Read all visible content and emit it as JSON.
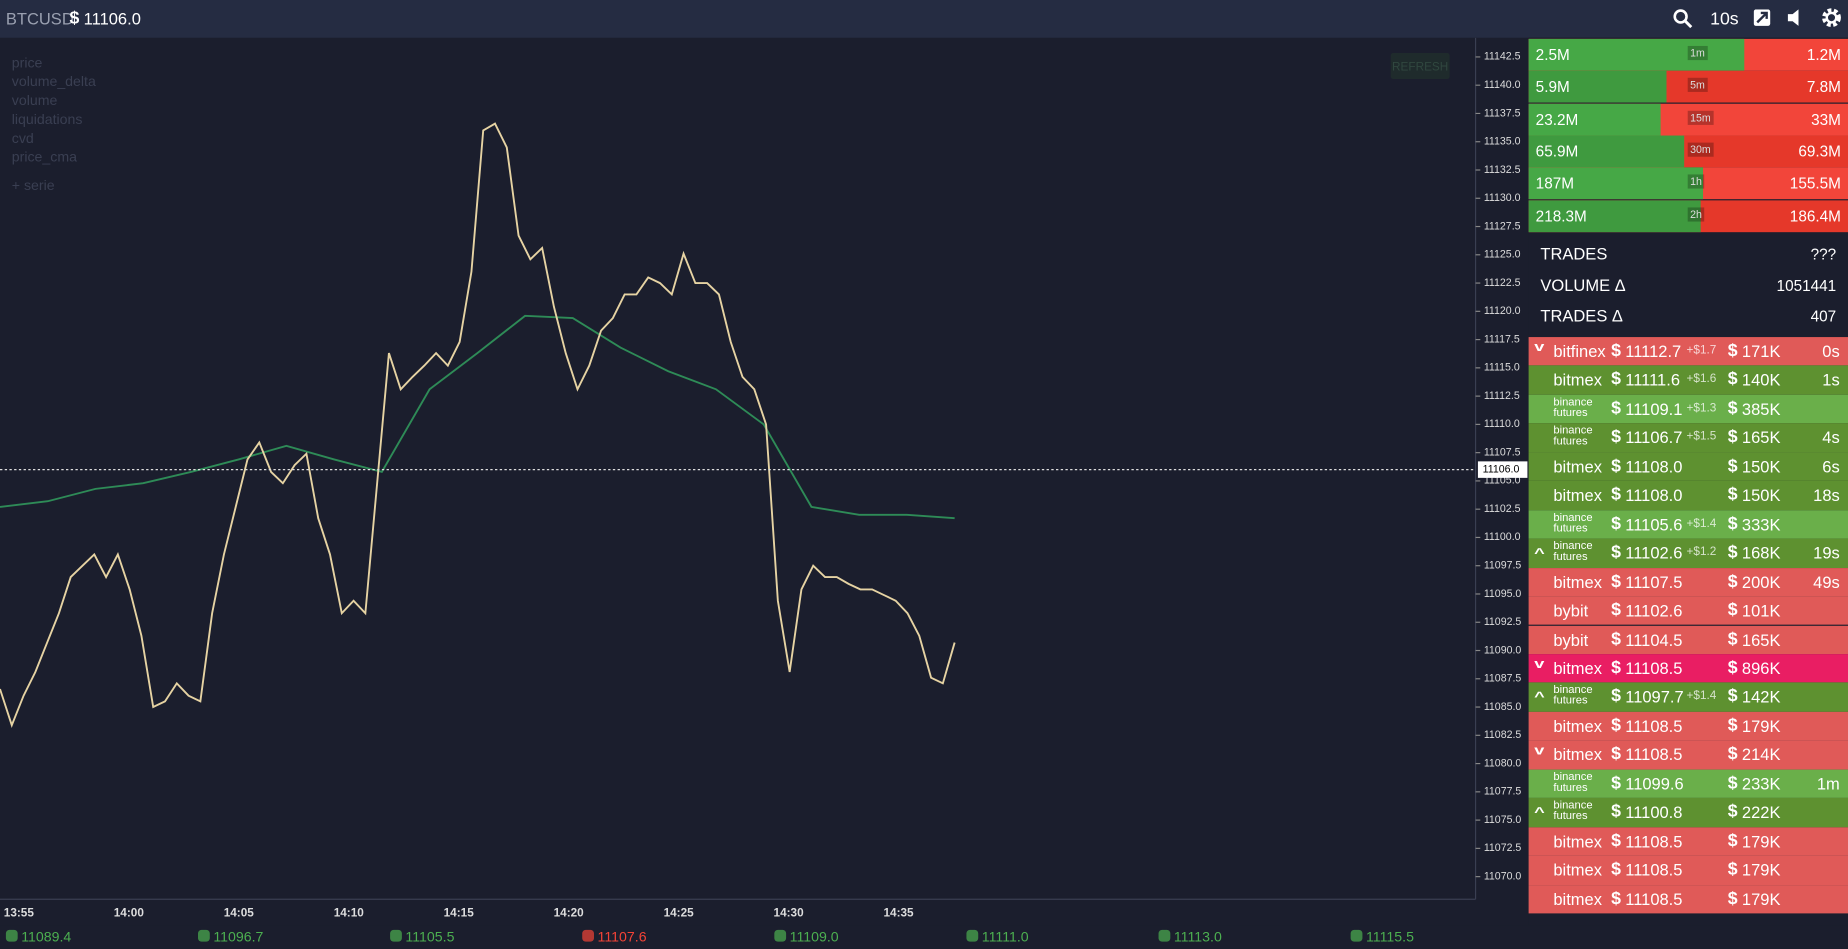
{
  "header": {
    "symbol": "BTCUSD",
    "currency": "$",
    "price": "11106.0",
    "interval": "10s"
  },
  "chart": {
    "series_menu": [
      "price",
      "volume_delta",
      "volume",
      "liquidations",
      "cvd",
      "price_cma"
    ],
    "add_serie": "+ serie",
    "refresh": "REFRESH",
    "ylim": [
      11068.0,
      11144.2
    ],
    "yticks": [
      11142.5,
      {
        "value": 11140,
        "label": "11140.0"
      },
      11137.5,
      {
        "value": 11135,
        "label": "11135.0"
      },
      11132.5,
      {
        "value": 11130,
        "label": "11130.0"
      },
      11127.5,
      {
        "value": 11125,
        "label": "11125.0"
      },
      11122.5,
      {
        "value": 11120,
        "label": "11120.0"
      },
      11117.5,
      {
        "value": 11115,
        "label": "11115.0"
      },
      11112.5,
      {
        "value": 11110,
        "label": "11110.0"
      },
      11107.5,
      {
        "value": 11105,
        "label": "11105.0"
      },
      11102.5,
      {
        "value": 11100,
        "label": "11100.0"
      },
      11097.5,
      {
        "value": 11095,
        "label": "11095.0"
      },
      11092.5,
      {
        "value": 11090,
        "label": "11090.0"
      },
      11087.5,
      {
        "value": 11085,
        "label": "11085.0"
      },
      11082.5,
      {
        "value": 11080,
        "label": "11080.0"
      },
      11077.5,
      {
        "value": 11075,
        "label": "11075.0"
      },
      11072.5,
      {
        "value": 11070,
        "label": "11070.0"
      }
    ],
    "xticks": [
      "13:55",
      "14:00",
      "14:05",
      "14:10",
      "14:15",
      "14:20",
      "14:25",
      "14:30",
      "14:35"
    ],
    "last_price": {
      "value": 11106.0,
      "label": "11106.0"
    },
    "line": {
      "color": "#e6d3a3",
      "values": [
        11086.6,
        11083.4,
        11086.0,
        11088.1,
        11090.7,
        11093.3,
        11096.5,
        11097.5,
        11098.5,
        11096.5,
        11098.5,
        11095.4,
        11091.3,
        11085.0,
        11085.5,
        11087.1,
        11086.0,
        11085.5,
        11093.3,
        11098.5,
        11102.7,
        11106.9,
        11108.4,
        11105.8,
        11104.8,
        11106.4,
        11107.4,
        11101.7,
        11098.5,
        11093.3,
        11094.4,
        11093.3,
        11104.8,
        11116.3,
        11113.1,
        11114.2,
        11115.2,
        11116.3,
        11115.2,
        11117.3,
        11123.5,
        11136.0,
        11136.6,
        11134.5,
        11126.7,
        11124.6,
        11125.6,
        11120.4,
        11116.3,
        11113.1,
        11115.2,
        11118.3,
        11119.4,
        11121.5,
        11121.5,
        11123.0,
        11122.5,
        11121.5,
        11125.1,
        11122.5,
        11122.5,
        11121.5,
        11117.3,
        11114.2,
        11113.1,
        11110.0,
        11094.4,
        11088.1,
        11095.4,
        11097.5,
        11096.5,
        11096.5,
        11095.9,
        11095.4,
        11095.4,
        11094.9,
        11094.4,
        11093.3,
        11091.3,
        11087.6,
        11087.1,
        11090.7
      ]
    },
    "cma": {
      "color": "#2e8b57",
      "values": [
        11102.7,
        11103.2,
        11104.3,
        11104.8,
        11105.8,
        11106.9,
        11108.1,
        11106.9,
        11105.8,
        11113.1,
        11116.3,
        11119.6,
        11119.4,
        11116.8,
        11114.7,
        11113.1,
        11110.0,
        11102.7,
        11102.0,
        11102.0,
        11101.7
      ]
    }
  },
  "volume": {
    "timeframes": [
      "1m",
      "5m",
      "15m",
      "30m",
      "1h",
      "2h"
    ],
    "buy_values": [
      2500000,
      5900000,
      23200000,
      65900000,
      187000000,
      218300000
    ],
    "buy_labels": [
      "2.5M",
      "5.9M",
      "23.2M",
      "65.9M",
      "187M",
      "218.3M"
    ],
    "sell_values": [
      1200000,
      7800000,
      33000000,
      69300000,
      155500000,
      186400000
    ],
    "sell_labels": [
      "1.2M",
      "7.8M",
      "33M",
      "69.3M",
      "155.5M",
      "186.4M"
    ]
  },
  "stats": [
    {
      "label": "TRADES",
      "value": "???"
    },
    {
      "label": "VOLUME Δ",
      "value": 1051441
    },
    {
      "label": "TRADES Δ",
      "value": 407
    }
  ],
  "trades": {
    "currency": "$",
    "rows": [
      {
        "color": "#e05a58",
        "arrow": "down",
        "exchange": "bitfinex",
        "price": "11112.7",
        "delta": "+$1.7",
        "size": "171K",
        "age": "0s"
      },
      {
        "color": "#5e9130",
        "exchange": "bitmex",
        "price": "11111.6",
        "delta": "+$1.6",
        "size": "140K",
        "age": "1s"
      },
      {
        "color": "#6aaf4a",
        "exchange": "binance futures",
        "price": "11109.1",
        "delta": "+$1.3",
        "size": "385K"
      },
      {
        "color": "#5e9130",
        "exchange": "binance futures",
        "price": "11106.7",
        "delta": "+$1.5",
        "size": "165K",
        "age": "4s"
      },
      {
        "color": "#5e9130",
        "exchange": "bitmex",
        "price": "11108.0",
        "size": "150K",
        "age": "6s"
      },
      {
        "color": "#5e9130",
        "exchange": "bitmex",
        "price": "11108.0",
        "size": "150K",
        "age": "18s"
      },
      {
        "color": "#6aaf4a",
        "exchange": "binance futures",
        "price": "11105.6",
        "delta": "+$1.4",
        "size": "333K"
      },
      {
        "color": "#5e9130",
        "arrow": "up",
        "exchange": "binance futures",
        "price": "11102.6",
        "delta": "+$1.2",
        "size": "168K",
        "age": "19s"
      },
      {
        "color": "#e05a58",
        "exchange": "bitmex",
        "price": "11107.5",
        "size": "200K",
        "age": "49s"
      },
      {
        "color": "#e05a58",
        "exchange": "bybit",
        "price": "11102.6",
        "size": "101K"
      },
      {
        "color": "#e05a58",
        "exchange": "bybit",
        "price": "11104.5",
        "size": "165K"
      },
      {
        "color": "#e91e63",
        "arrow": "down",
        "exchange": "bitmex",
        "price": "11108.5",
        "size": "896K"
      },
      {
        "color": "#5e9130",
        "arrow": "up",
        "exchange": "binance futures",
        "price": "11097.7",
        "delta": "+$1.4",
        "size": "142K"
      },
      {
        "color": "#e05a58",
        "exchange": "bitmex",
        "price": "11108.5",
        "size": "179K"
      },
      {
        "color": "#e05a58",
        "arrow": "down",
        "exchange": "bitmex",
        "price": "11108.5",
        "size": "214K"
      },
      {
        "color": "#6aaf4a",
        "exchange": "binance futures",
        "price": "11099.6",
        "size": "233K",
        "age": "1m"
      },
      {
        "color": "#5e9130",
        "arrow": "up",
        "exchange": "binance futures",
        "price": "11100.8",
        "size": "222K"
      },
      {
        "color": "#e05a58",
        "exchange": "bitmex",
        "price": "11108.5",
        "size": "179K"
      },
      {
        "color": "#e05a58",
        "exchange": "bitmex",
        "price": "11108.5",
        "size": "179K"
      },
      {
        "color": "#e05a58",
        "exchange": "bitmex",
        "price": "11108.5",
        "size": "179K"
      }
    ]
  },
  "tickers": [
    {
      "price": "11089.4",
      "color": "#4caf50"
    },
    {
      "price": "11096.7",
      "color": "#4caf50"
    },
    {
      "price": "11105.5",
      "color": "#4caf50"
    },
    {
      "price": "11107.6",
      "color": "#f44336"
    },
    {
      "price": "11109.0",
      "color": "#4caf50"
    },
    {
      "price": "11111.0",
      "color": "#4caf50"
    },
    {
      "price": "11113.0",
      "color": "#4caf50"
    },
    {
      "price": "11115.5",
      "color": "#4caf50"
    }
  ]
}
